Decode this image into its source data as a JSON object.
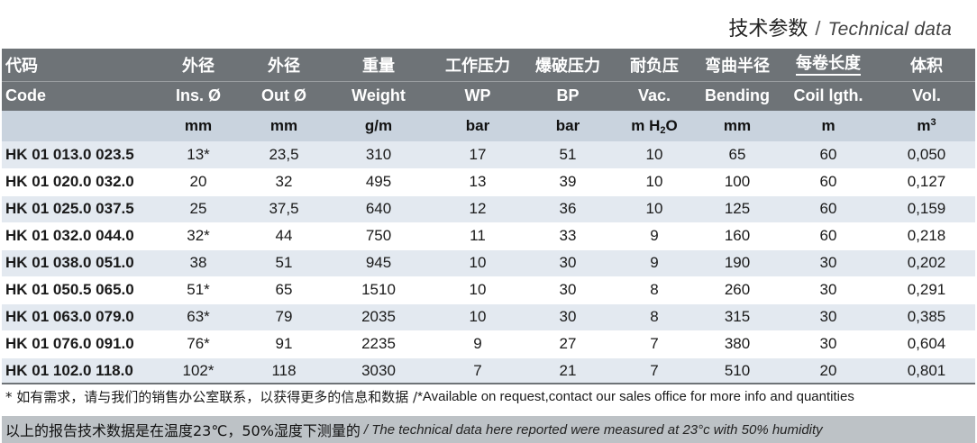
{
  "title": {
    "zh": "技术参数",
    "separator": "/",
    "en": "Technical data"
  },
  "columns": [
    {
      "zh": "代码",
      "en": "Code",
      "unit": ""
    },
    {
      "zh": "外径",
      "en": "Ins. Ø",
      "unit": "mm"
    },
    {
      "zh": "外径",
      "en": "Out Ø",
      "unit": "mm"
    },
    {
      "zh": "重量",
      "en": "Weight",
      "unit": "g/m"
    },
    {
      "zh": "工作压力",
      "en": "WP",
      "unit": "bar"
    },
    {
      "zh": "爆破压力",
      "en": "BP",
      "unit": "bar"
    },
    {
      "zh": "耐负压",
      "en": "Vac.",
      "unit_prefix": "m H",
      "unit_sub": "2",
      "unit_suffix": "O"
    },
    {
      "zh": "弯曲半径",
      "en": "Bending",
      "unit": "mm"
    },
    {
      "zh": "每卷长度",
      "en": "Coil lgth.",
      "unit": "m"
    },
    {
      "zh": "体积",
      "en": "Vol.",
      "unit_prefix": "m",
      "unit_sup": "3"
    }
  ],
  "rows": [
    [
      "HK 01 013.0 023.5",
      "13*",
      "23,5",
      "310",
      "17",
      "51",
      "10",
      "65",
      "60",
      "0,050"
    ],
    [
      "HK 01 020.0 032.0",
      "20",
      "32",
      "495",
      "13",
      "39",
      "10",
      "100",
      "60",
      "0,127"
    ],
    [
      "HK 01 025.0 037.5",
      "25",
      "37,5",
      "640",
      "12",
      "36",
      "10",
      "125",
      "60",
      "0,159"
    ],
    [
      "HK 01 032.0 044.0",
      "32*",
      "44",
      "750",
      "11",
      "33",
      "9",
      "160",
      "60",
      "0,218"
    ],
    [
      "HK 01 038.0 051.0",
      "38",
      "51",
      "945",
      "10",
      "30",
      "9",
      "190",
      "30",
      "0,202"
    ],
    [
      "HK 01 050.5 065.0",
      "51*",
      "65",
      "1510",
      "10",
      "30",
      "8",
      "260",
      "30",
      "0,291"
    ],
    [
      "HK 01 063.0 079.0",
      "63*",
      "79",
      "2035",
      "10",
      "30",
      "8",
      "315",
      "30",
      "0,385"
    ],
    [
      "HK 01 076.0 091.0",
      "76*",
      "91",
      "2235",
      "9",
      "27",
      "7",
      "380",
      "30",
      "0,604"
    ],
    [
      "HK 01 102.0 118.0",
      "102*",
      "118",
      "3030",
      "7",
      "21",
      "7",
      "510",
      "20",
      "0,801"
    ]
  ],
  "footnote": {
    "zh": "*  如有需求，请与我们的销售办公室联系，以获得更多的信息和数据 / ",
    "en": "*Available on request,contact our sales office for more info and quantities"
  },
  "notice": {
    "zh": "以上的报告技术数据是在温度23℃，50%湿度下测量的",
    "en": "/ The technical data here reported were measured at 23°c with 50% humidity"
  },
  "colors": {
    "header_bg": "#6e7377",
    "unit_row_bg": "#c9d3de",
    "alt_row_bg": "#e3e9f0",
    "notice_bg": "#bdc2c6"
  }
}
